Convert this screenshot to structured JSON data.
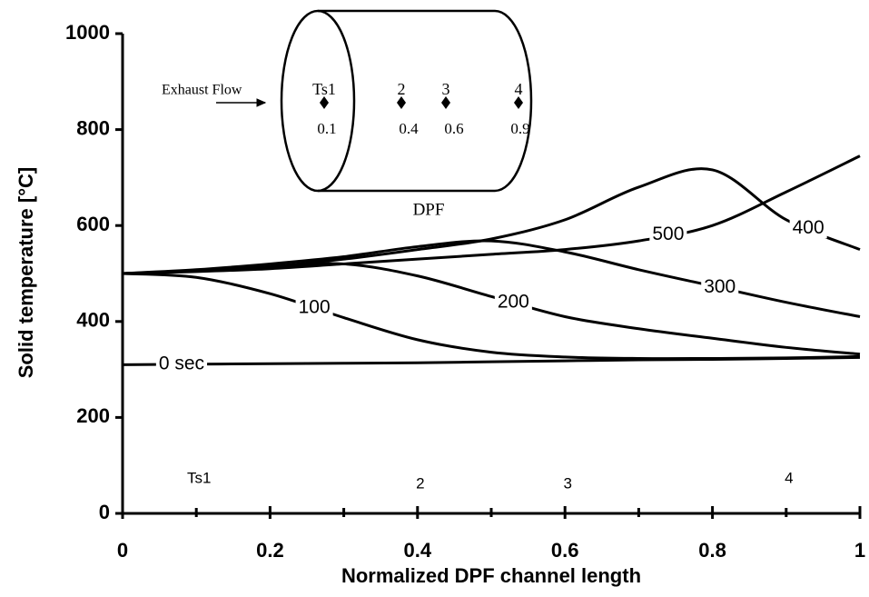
{
  "chart_data": {
    "type": "line",
    "x_label": "Normalized DPF channel length",
    "y_label": "Solid temperature [°C]",
    "xlim": [
      0,
      1
    ],
    "ylim": [
      0,
      1000
    ],
    "xticks": [
      0,
      0.2,
      0.4,
      0.6,
      0.8,
      1
    ],
    "xminorticks": [
      0.1,
      0.3,
      0.5,
      0.7,
      0.9
    ],
    "yticks": [
      0,
      200,
      400,
      600,
      800,
      1000
    ],
    "grid": false,
    "x": [
      0,
      0.1,
      0.2,
      0.3,
      0.4,
      0.5,
      0.6,
      0.7,
      0.8,
      0.9,
      1
    ],
    "series": [
      {
        "name": "0 sec",
        "color": "#000000",
        "values": [
          310,
          311,
          312,
          313,
          314,
          316,
          318,
          320,
          321,
          323,
          325
        ]
      },
      {
        "name": "100",
        "color": "#000000",
        "values": [
          500,
          492,
          458,
          408,
          362,
          336,
          326,
          323,
          323,
          324,
          327
        ]
      },
      {
        "name": "200",
        "color": "#000000",
        "values": [
          500,
          505,
          514,
          520,
          495,
          452,
          410,
          385,
          365,
          346,
          332
        ]
      },
      {
        "name": "300",
        "color": "#000000",
        "values": [
          500,
          508,
          520,
          535,
          556,
          568,
          545,
          508,
          474,
          440,
          410
        ]
      },
      {
        "name": "400",
        "color": "#000000",
        "values": [
          500,
          506,
          515,
          530,
          550,
          572,
          612,
          680,
          716,
          612,
          550
        ]
      },
      {
        "name": "500",
        "color": "#000000",
        "values": [
          500,
          504,
          510,
          520,
          530,
          540,
          550,
          568,
          600,
          670,
          745
        ]
      }
    ],
    "inset": {
      "title": "DPF",
      "flow_label": "Exhaust Flow"
    },
    "sensors": [
      {
        "label": "Ts1",
        "x": 0.1
      },
      {
        "label": "2",
        "x": 0.4
      },
      {
        "label": "3",
        "x": 0.6
      },
      {
        "label": "4",
        "x": 0.9
      }
    ]
  }
}
